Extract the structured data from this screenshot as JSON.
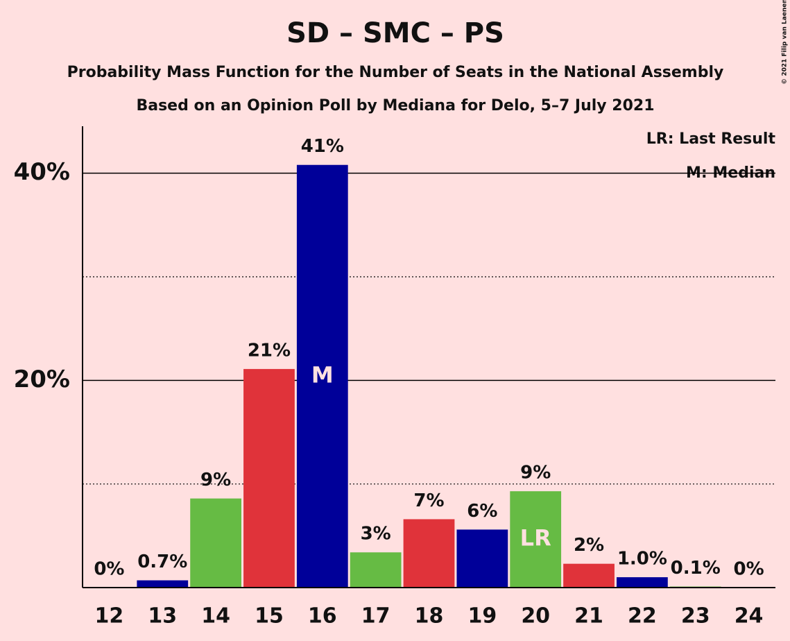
{
  "chart_data": {
    "type": "bar",
    "title": "SD – SMC – PS",
    "subtitle": "Probability Mass Function for the Number of Seats in the National Assembly",
    "subtitle2": "Based on an Opinion Poll by Mediana for Delo, 5–7 July 2021",
    "copyright": "© 2021 Filip van Laenen",
    "categories": [
      "12",
      "13",
      "14",
      "15",
      "16",
      "17",
      "18",
      "19",
      "20",
      "21",
      "22",
      "23",
      "24"
    ],
    "values": [
      0,
      0.7,
      8.6,
      21.1,
      40.8,
      3.4,
      6.6,
      5.6,
      9.3,
      2.3,
      1.0,
      0.1,
      0
    ],
    "value_labels": [
      "0%",
      "0.7%",
      "9%",
      "21%",
      "41%",
      "3%",
      "7%",
      "6%",
      "9%",
      "2%",
      "1.0%",
      "0.1%",
      "0%"
    ],
    "colors": [
      "#66bb44",
      "#000099",
      "#66bb44",
      "#e0333a",
      "#000099",
      "#66bb44",
      "#e0333a",
      "#000099",
      "#66bb44",
      "#e0333a",
      "#000099",
      "#66bb44",
      "#e0333a"
    ],
    "ylim": [
      0,
      45
    ],
    "yticks": [
      {
        "value": 20,
        "label": "20%"
      },
      {
        "value": 40,
        "label": "40%"
      }
    ],
    "minor_gridlines": [
      10,
      30
    ],
    "annotations": [
      {
        "category": "16",
        "text": "M"
      },
      {
        "category": "20",
        "text": "LR"
      }
    ],
    "legend": [
      "LR: Last Result",
      "M: Median"
    ]
  }
}
